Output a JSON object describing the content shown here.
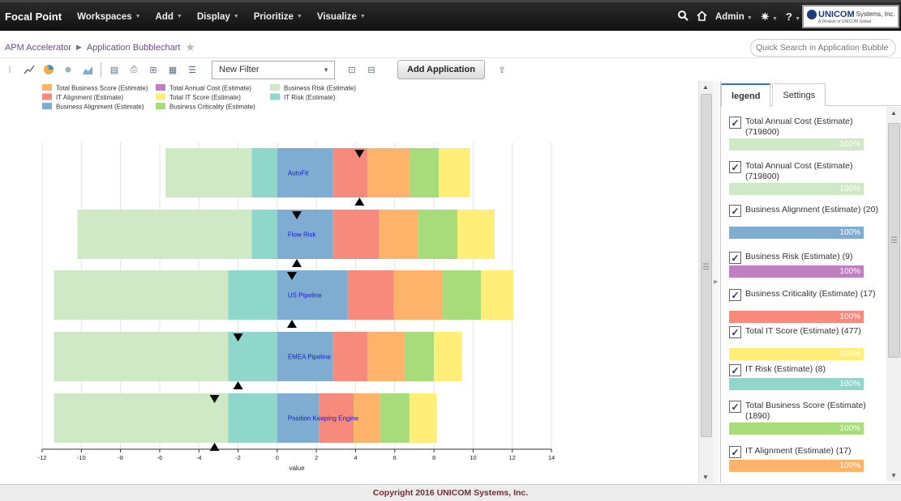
{
  "app": {
    "brand": "Focal Point",
    "nav": [
      "Workspaces",
      "Add",
      "Display",
      "Prioritize",
      "Visualize"
    ],
    "user": "Admin",
    "logo_text": "UNICOM",
    "logo_suffix": "Systems, Inc.",
    "logo_sub": "A Division of UNICOM Global"
  },
  "breadcrumb": [
    "APM Accelerator",
    "Application Bubblechart"
  ],
  "search": {
    "placeholder": "Quick Search in Application Bubble"
  },
  "toolbar": {
    "filter_value": "New Filter",
    "add_label": "Add Application"
  },
  "panel": {
    "tabs": [
      "legend",
      "Settings"
    ],
    "items": [
      {
        "label": "Total Annual Cost (Estimate) (719800)",
        "pct": "100%",
        "color": "#cfe8c6"
      },
      {
        "label": "Total Annual Cost (Estimate) (719800)",
        "pct": "100%",
        "color": "#cfe8c6"
      },
      {
        "label": "Business Alignment (Estimate) (20)",
        "pct": "100%",
        "color": "#7fadd2"
      },
      {
        "label": "Business Risk (Estimate) (9)",
        "pct": "100%",
        "color": "#c07fc0"
      },
      {
        "label": "Business Criticality (Estimate) (17)",
        "pct": "100%",
        "color": "#f58a7d"
      },
      {
        "label": "Total IT Score (Estimate) (477)",
        "pct": "100%",
        "color": "#ffee77"
      },
      {
        "label": "IT Risk (Estimate) (8)",
        "pct": "100%",
        "color": "#8fd6cb"
      },
      {
        "label": "Total Business Score (Estimate) (1890)",
        "pct": "100%",
        "color": "#a8db7a"
      },
      {
        "label": "IT Alignment (Estimate) (17)",
        "pct": "100%",
        "color": "#fdb46a"
      }
    ]
  },
  "footer": "Copyright 2016 UNICOM Systems, Inc.",
  "chart_data": {
    "type": "bar",
    "orientation": "horizontal-stacked-diverging",
    "xlabel": "value",
    "xlim": [
      -12,
      14
    ],
    "xticks": [
      -12,
      -10,
      -8,
      -6,
      -4,
      -2,
      0,
      2,
      4,
      6,
      8,
      10,
      12,
      14
    ],
    "legend": [
      {
        "name": "Total Business Score (Estimate)",
        "color": "#fdb46a"
      },
      {
        "name": "IT Alignment (Estimate)",
        "color": "#f58a7d"
      },
      {
        "name": "Business Alignment (Estimate)",
        "color": "#7fadd2"
      },
      {
        "name": "Total Annual Cost (Estimate)",
        "color": "#c07fc0"
      },
      {
        "name": "Total IT Score (Estimate)",
        "color": "#ffee77"
      },
      {
        "name": "Business Criticality (Estimate)",
        "color": "#a8db7a"
      },
      {
        "name": "Business Risk (Estimate)",
        "color": "#cfe8c6"
      },
      {
        "name": "IT Risk (Estimate)",
        "color": "#8fd6cb"
      }
    ],
    "rows": [
      {
        "name": "AutoFit",
        "marker": 4.2,
        "segments": [
          {
            "from": -5.7,
            "to": -1.3,
            "color": "#cfe8c6"
          },
          {
            "from": -1.3,
            "to": 0,
            "color": "#8fd6cb"
          },
          {
            "from": 0,
            "to": 2.85,
            "color": "#7fadd2"
          },
          {
            "from": 2.85,
            "to": 4.6,
            "color": "#f58a7d"
          },
          {
            "from": 4.6,
            "to": 6.75,
            "color": "#fdb46a"
          },
          {
            "from": 6.75,
            "to": 8.25,
            "color": "#a8db7a"
          },
          {
            "from": 8.25,
            "to": 9.85,
            "color": "#ffee77"
          }
        ]
      },
      {
        "name": "Flow Risk",
        "marker": 1.0,
        "segments": [
          {
            "from": -10.2,
            "to": -1.3,
            "color": "#cfe8c6"
          },
          {
            "from": -1.3,
            "to": 0,
            "color": "#8fd6cb"
          },
          {
            "from": 0,
            "to": 2.85,
            "color": "#7fadd2"
          },
          {
            "from": 2.85,
            "to": 5.2,
            "color": "#f58a7d"
          },
          {
            "from": 5.2,
            "to": 7.2,
            "color": "#fdb46a"
          },
          {
            "from": 7.2,
            "to": 9.2,
            "color": "#a8db7a"
          },
          {
            "from": 9.2,
            "to": 11.1,
            "color": "#ffee77"
          }
        ]
      },
      {
        "name": "US Pipeline",
        "marker": 0.75,
        "segments": [
          {
            "from": -11.4,
            "to": -2.5,
            "color": "#cfe8c6"
          },
          {
            "from": -2.5,
            "to": 0,
            "color": "#8fd6cb"
          },
          {
            "from": 0,
            "to": 3.6,
            "color": "#7fadd2"
          },
          {
            "from": 3.6,
            "to": 5.95,
            "color": "#f58a7d"
          },
          {
            "from": 5.95,
            "to": 8.45,
            "color": "#fdb46a"
          },
          {
            "from": 8.45,
            "to": 10.4,
            "color": "#a8db7a"
          },
          {
            "from": 10.4,
            "to": 12.05,
            "color": "#ffee77"
          }
        ]
      },
      {
        "name": "EMEA Pipeline",
        "marker": -2.0,
        "segments": [
          {
            "from": -11.4,
            "to": -2.5,
            "color": "#cfe8c6"
          },
          {
            "from": -2.5,
            "to": 0,
            "color": "#8fd6cb"
          },
          {
            "from": 0,
            "to": 2.85,
            "color": "#7fadd2"
          },
          {
            "from": 2.85,
            "to": 4.6,
            "color": "#f58a7d"
          },
          {
            "from": 4.6,
            "to": 6.5,
            "color": "#fdb46a"
          },
          {
            "from": 6.5,
            "to": 8.0,
            "color": "#a8db7a"
          },
          {
            "from": 8.0,
            "to": 9.45,
            "color": "#ffee77"
          }
        ]
      },
      {
        "name": "Position Keeping Engine",
        "marker": -3.2,
        "segments": [
          {
            "from": -11.4,
            "to": -2.5,
            "color": "#cfe8c6"
          },
          {
            "from": -2.5,
            "to": 0,
            "color": "#8fd6cb"
          },
          {
            "from": 0,
            "to": 2.15,
            "color": "#7fadd2"
          },
          {
            "from": 2.15,
            "to": 3.9,
            "color": "#f58a7d"
          },
          {
            "from": 3.9,
            "to": 5.25,
            "color": "#fdb46a"
          },
          {
            "from": 5.25,
            "to": 6.75,
            "color": "#a8db7a"
          },
          {
            "from": 6.75,
            "to": 8.15,
            "color": "#ffee77"
          }
        ]
      }
    ]
  }
}
